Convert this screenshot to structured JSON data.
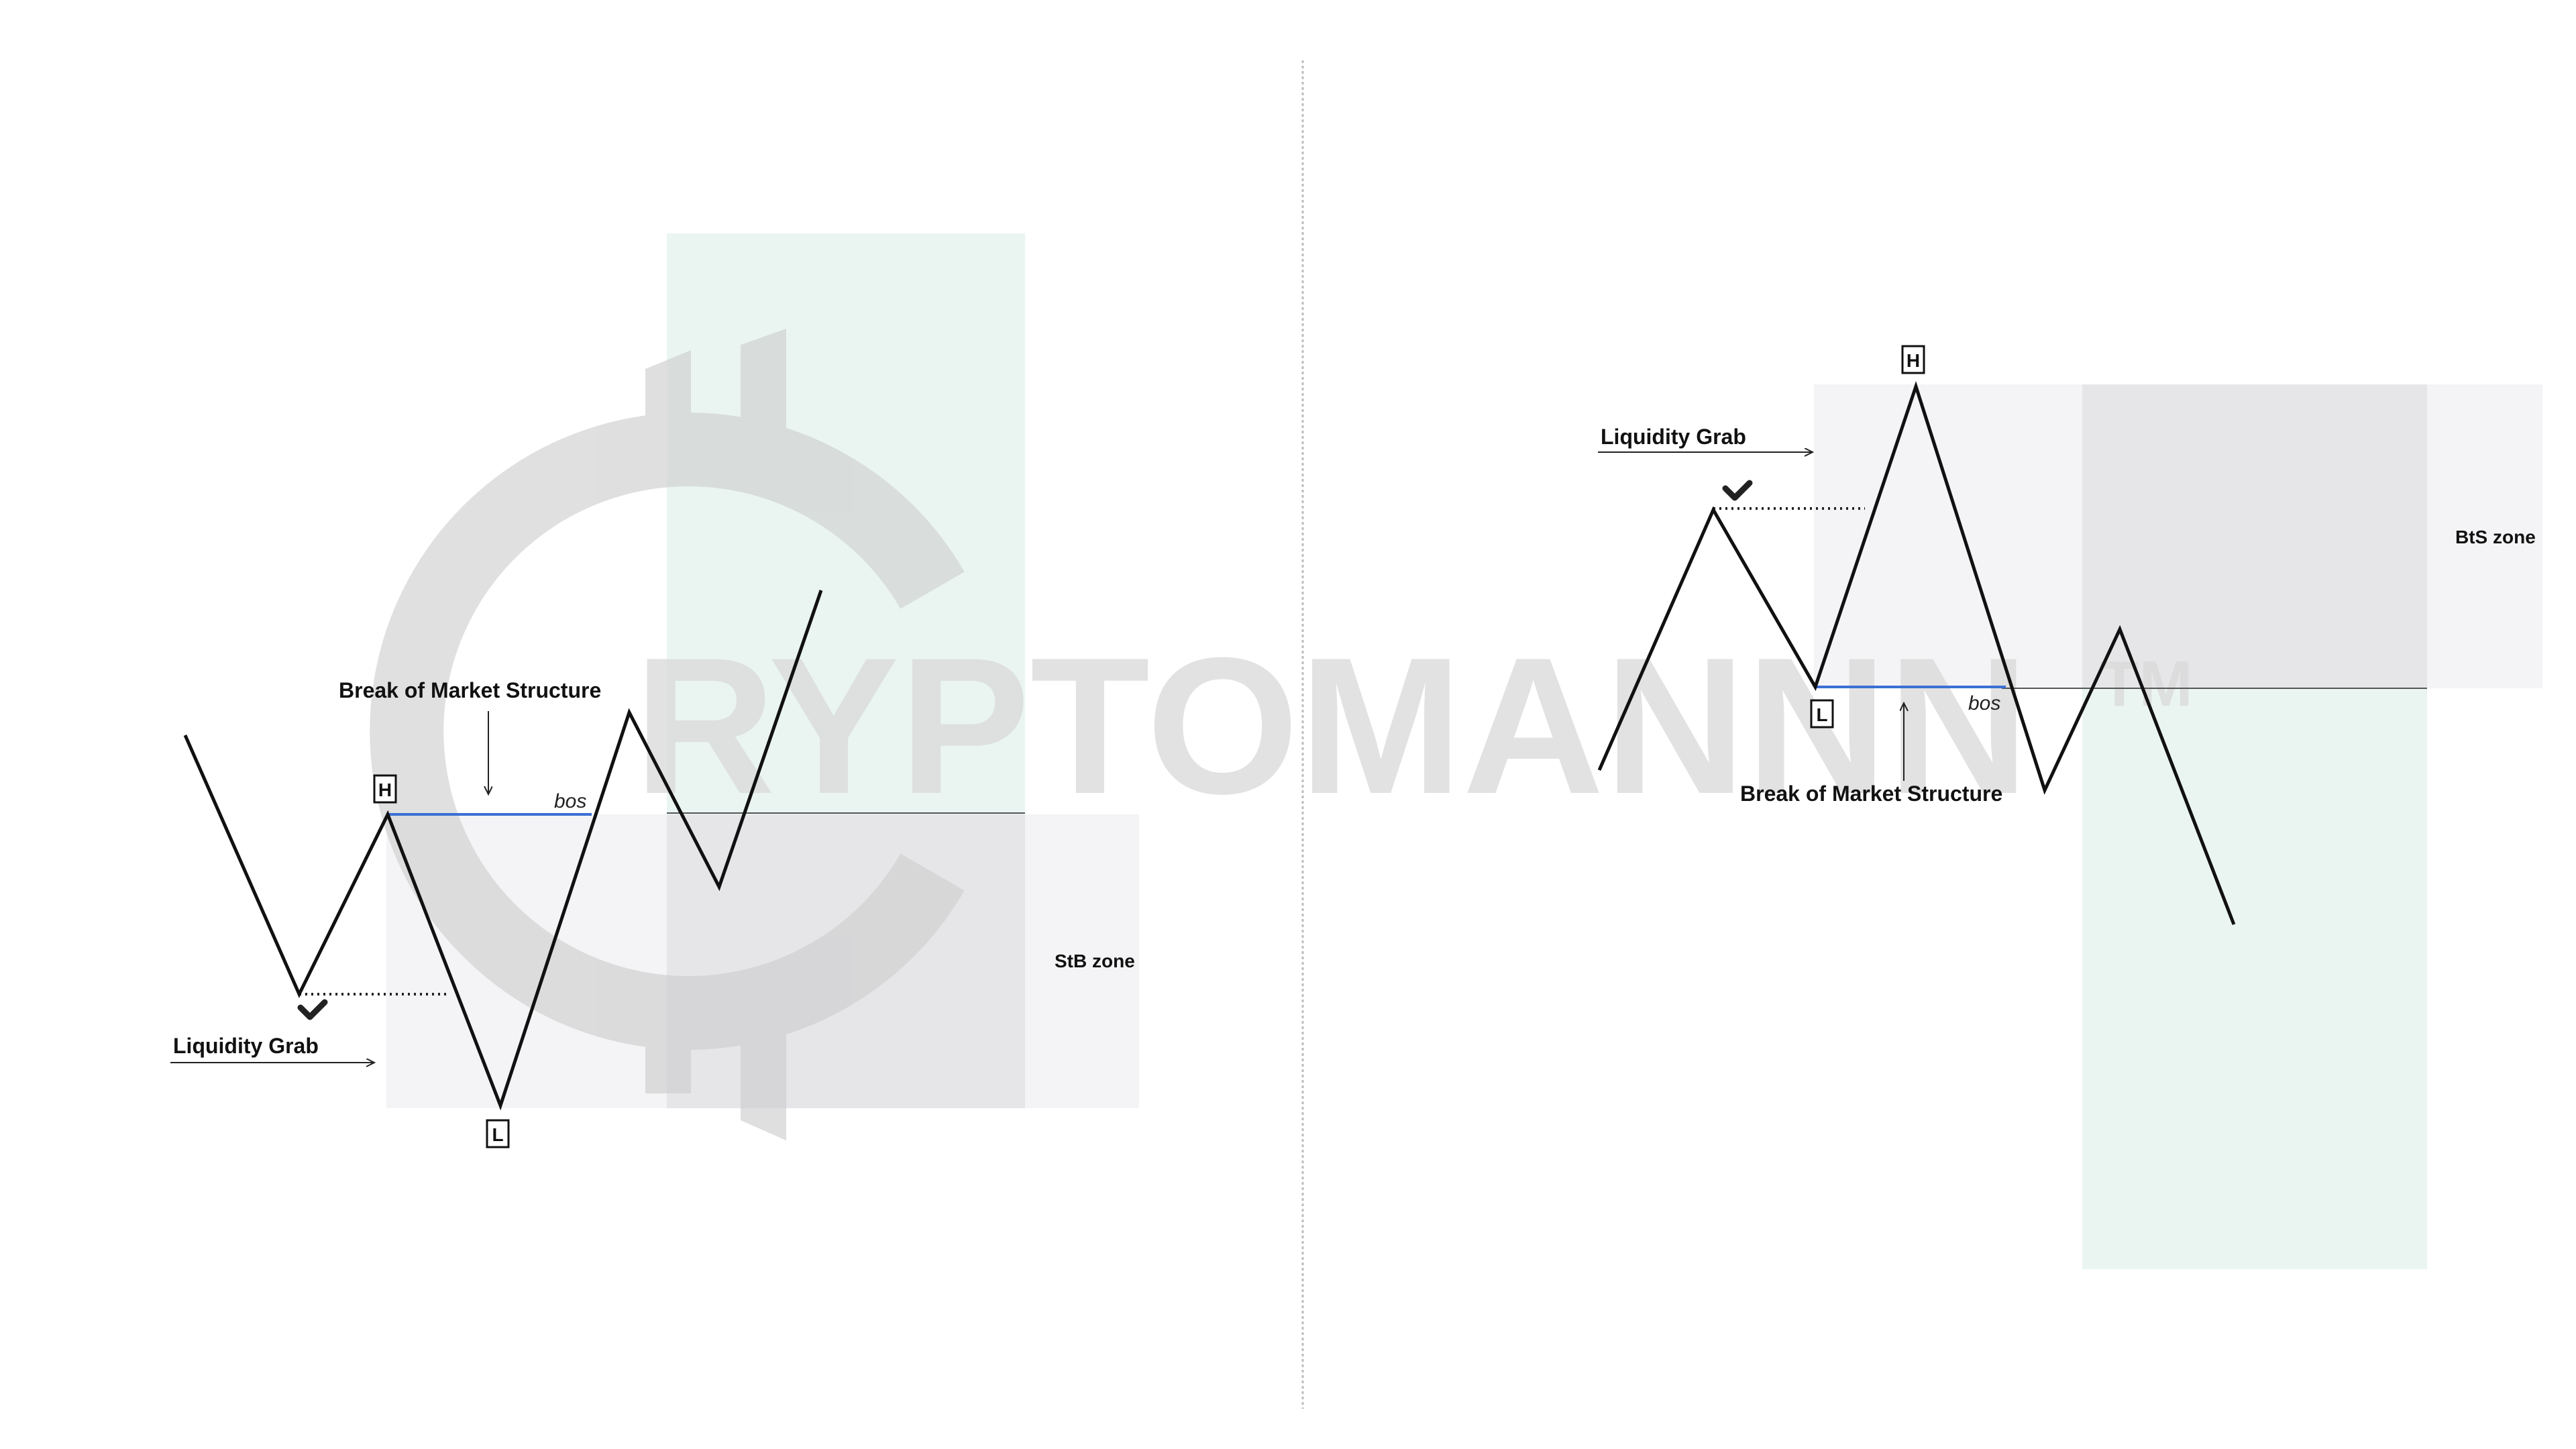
{
  "watermark": {
    "text": "RYPTOMANNN",
    "trademark": "TM"
  },
  "colors": {
    "price_line": "#111111",
    "bos_line": "#3b6fd4",
    "supply_zone_fill": "#f4f4f6",
    "overlap_zone_fill": "#e6e6e9",
    "target_zone_fill": "#eaf5f2",
    "watermark": "#d9d9d9",
    "divider": "#bdbdbd"
  },
  "left_panel": {
    "high_marker": "H",
    "low_marker": "L",
    "liquidity_grab_label": "Liquidity Grab",
    "bos_heading": "Break of Market Structure",
    "bos_tag": "bos",
    "zone_label": "StB zone"
  },
  "right_panel": {
    "high_marker": "H",
    "low_marker": "L",
    "liquidity_grab_label": "Liquidity Grab",
    "bos_heading": "Break of Market Structure",
    "bos_tag": "bos",
    "zone_label": "BtS zone"
  },
  "icons": [
    "checkmark-icon",
    "arrow-right-icon",
    "arrow-down-icon",
    "arrow-up-icon",
    "crypto-logo-icon"
  ]
}
